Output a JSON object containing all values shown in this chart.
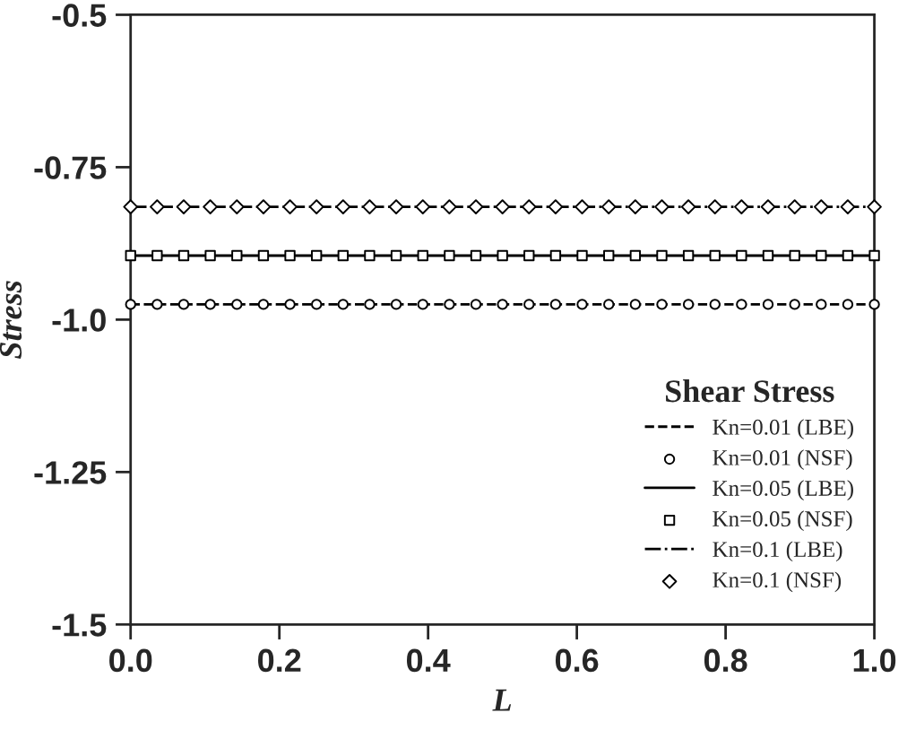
{
  "chart_data": {
    "type": "line",
    "xlabel": "L",
    "ylabel": "Stress",
    "legend_title": "Shear Stress",
    "legend": "bottom right",
    "grid": false,
    "xlim": [
      0,
      1
    ],
    "ylim": [
      -1.5,
      -0.5
    ],
    "xticks": [
      {
        "value": 0,
        "label": "0.0"
      },
      0.2,
      0.4,
      0.6,
      0.8,
      {
        "value": 1,
        "label": "1.0"
      }
    ],
    "yticks": [
      -0.5,
      -0.75,
      {
        "value": -1,
        "label": "-1.0"
      },
      -1.25,
      -1.5
    ],
    "series": [
      {
        "name": "Kn=0.01 (LBE)",
        "color": "#000000",
        "line_style": "dashed",
        "marker": "none",
        "x": [
          0,
          1
        ],
        "values": [
          -0.975,
          -0.975
        ]
      },
      {
        "name": "Kn=0.01 (NSF)",
        "type": "scatter",
        "color": "#000000",
        "marker": "circle",
        "x": [
          0,
          0.0357,
          0.0714,
          0.1071,
          0.1429,
          0.1786,
          0.2143,
          0.25,
          0.2857,
          0.3214,
          0.3571,
          0.3929,
          0.4286,
          0.4643,
          0.5,
          0.5357,
          0.5714,
          0.6071,
          0.6429,
          0.6786,
          0.7143,
          0.75,
          0.7857,
          0.8214,
          0.8571,
          0.8929,
          0.9286,
          0.9643,
          1
        ],
        "values": [
          -0.975,
          -0.975,
          -0.975,
          -0.975,
          -0.975,
          -0.975,
          -0.975,
          -0.975,
          -0.975,
          -0.975,
          -0.975,
          -0.975,
          -0.975,
          -0.975,
          -0.975,
          -0.975,
          -0.975,
          -0.975,
          -0.975,
          -0.975,
          -0.975,
          -0.975,
          -0.975,
          -0.975,
          -0.975,
          -0.975,
          -0.975,
          -0.975,
          -0.975
        ]
      },
      {
        "name": "Kn=0.05 (LBE)",
        "color": "#000000",
        "line_style": "solid",
        "marker": "none",
        "x": [
          0,
          1
        ],
        "values": [
          -0.895,
          -0.895
        ]
      },
      {
        "name": "Kn=0.05 (NSF)",
        "type": "scatter",
        "color": "#000000",
        "marker": "square",
        "x": [
          0,
          0.0357,
          0.0714,
          0.1071,
          0.1429,
          0.1786,
          0.2143,
          0.25,
          0.2857,
          0.3214,
          0.3571,
          0.3929,
          0.4286,
          0.4643,
          0.5,
          0.5357,
          0.5714,
          0.6071,
          0.6429,
          0.6786,
          0.7143,
          0.75,
          0.7857,
          0.8214,
          0.8571,
          0.8929,
          0.9286,
          0.9643,
          1
        ],
        "values": [
          -0.895,
          -0.895,
          -0.895,
          -0.895,
          -0.895,
          -0.895,
          -0.895,
          -0.895,
          -0.895,
          -0.895,
          -0.895,
          -0.895,
          -0.895,
          -0.895,
          -0.895,
          -0.895,
          -0.895,
          -0.895,
          -0.895,
          -0.895,
          -0.895,
          -0.895,
          -0.895,
          -0.895,
          -0.895,
          -0.895,
          -0.895,
          -0.895,
          -0.895
        ]
      },
      {
        "name": "Kn=0.1 (LBE)",
        "color": "#000000",
        "line_style": "dashdot",
        "marker": "none",
        "x": [
          0,
          1
        ],
        "values": [
          -0.815,
          -0.815
        ]
      },
      {
        "name": "Kn=0.1 (NSF)",
        "type": "scatter",
        "color": "#000000",
        "marker": "diamond",
        "x": [
          0,
          0.0357,
          0.0714,
          0.1071,
          0.1429,
          0.1786,
          0.2143,
          0.25,
          0.2857,
          0.3214,
          0.3571,
          0.3929,
          0.4286,
          0.4643,
          0.5,
          0.5357,
          0.5714,
          0.6071,
          0.6429,
          0.6786,
          0.7143,
          0.75,
          0.7857,
          0.8214,
          0.8571,
          0.8929,
          0.9286,
          0.9643,
          1
        ],
        "values": [
          -0.815,
          -0.815,
          -0.815,
          -0.815,
          -0.815,
          -0.815,
          -0.815,
          -0.815,
          -0.815,
          -0.815,
          -0.815,
          -0.815,
          -0.815,
          -0.815,
          -0.815,
          -0.815,
          -0.815,
          -0.815,
          -0.815,
          -0.815,
          -0.815,
          -0.815,
          -0.815,
          -0.815,
          -0.815,
          -0.815,
          -0.815,
          -0.815,
          -0.815
        ]
      }
    ]
  }
}
